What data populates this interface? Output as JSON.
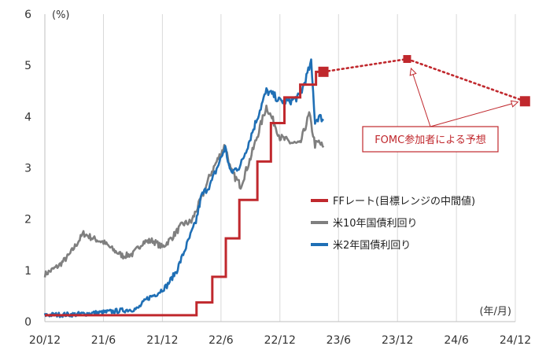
{
  "chart_data": {
    "type": "line",
    "y_unit": "(%)",
    "x_unit": "(年/月)",
    "ylim": [
      0,
      6
    ],
    "y_ticks": [
      "0",
      "1",
      "2",
      "3",
      "4",
      "5",
      "6"
    ],
    "x_ticks": [
      "20/12",
      "21/6",
      "21/12",
      "22/6",
      "22/12",
      "23/6",
      "23/12",
      "24/6",
      "24/12"
    ],
    "grid": "vertical",
    "legend_position": "right-middle",
    "colors": {
      "ff": "#c0282d",
      "us10y": "#7f7f7f",
      "us2y": "#1f6fb5",
      "grid": "#d9d9d9",
      "axis": "#bfbfbf"
    },
    "series": [
      {
        "name": "FFレート(目標レンジの中間値)",
        "style": "step",
        "points": [
          [
            "2020-12-01",
            0.125
          ],
          [
            "2022-03-17",
            0.375
          ],
          [
            "2022-05-05",
            0.875
          ],
          [
            "2022-06-16",
            1.625
          ],
          [
            "2022-07-28",
            2.375
          ],
          [
            "2022-09-22",
            3.125
          ],
          [
            "2022-11-03",
            3.875
          ],
          [
            "2022-12-15",
            4.375
          ],
          [
            "2023-02-02",
            4.625
          ],
          [
            "2023-03-23",
            4.875
          ],
          [
            "2023-04-15",
            4.875
          ]
        ]
      },
      {
        "name": "米10年国債利回り",
        "style": "line",
        "points": [
          [
            "2020-12-01",
            0.92
          ],
          [
            "2021-01-15",
            1.1
          ],
          [
            "2021-02-15",
            1.3
          ],
          [
            "2021-03-31",
            1.72
          ],
          [
            "2021-05-01",
            1.62
          ],
          [
            "2021-06-01",
            1.55
          ],
          [
            "2021-07-01",
            1.4
          ],
          [
            "2021-08-01",
            1.28
          ],
          [
            "2021-09-01",
            1.32
          ],
          [
            "2021-10-01",
            1.55
          ],
          [
            "2021-11-01",
            1.58
          ],
          [
            "2021-12-01",
            1.45
          ],
          [
            "2022-01-01",
            1.65
          ],
          [
            "2022-02-01",
            1.9
          ],
          [
            "2022-03-01",
            1.95
          ],
          [
            "2022-04-01",
            2.4
          ],
          [
            "2022-05-01",
            2.9
          ],
          [
            "2022-06-14",
            3.45
          ],
          [
            "2022-07-01",
            2.95
          ],
          [
            "2022-08-01",
            2.65
          ],
          [
            "2022-09-01",
            3.2
          ],
          [
            "2022-10-20",
            4.2
          ],
          [
            "2022-11-15",
            3.85
          ],
          [
            "2022-12-01",
            3.6
          ],
          [
            "2023-01-01",
            3.5
          ],
          [
            "2023-02-01",
            3.45
          ],
          [
            "2023-03-02",
            4.05
          ],
          [
            "2023-03-20",
            3.45
          ],
          [
            "2023-04-01",
            3.5
          ],
          [
            "2023-04-15",
            3.4
          ]
        ]
      },
      {
        "name": "米2年国債利回り",
        "style": "line",
        "points": [
          [
            "2020-12-01",
            0.13
          ],
          [
            "2021-03-01",
            0.14
          ],
          [
            "2021-06-01",
            0.18
          ],
          [
            "2021-08-01",
            0.22
          ],
          [
            "2021-09-15",
            0.25
          ],
          [
            "2021-10-15",
            0.45
          ],
          [
            "2021-11-15",
            0.55
          ],
          [
            "2021-12-15",
            0.7
          ],
          [
            "2022-01-15",
            1.0
          ],
          [
            "2022-02-15",
            1.5
          ],
          [
            "2022-03-15",
            1.95
          ],
          [
            "2022-04-01",
            2.45
          ],
          [
            "2022-05-01",
            2.7
          ],
          [
            "2022-06-14",
            3.4
          ],
          [
            "2022-07-01",
            2.9
          ],
          [
            "2022-08-01",
            3.05
          ],
          [
            "2022-09-01",
            3.6
          ],
          [
            "2022-10-20",
            4.5
          ],
          [
            "2022-11-15",
            4.4
          ],
          [
            "2022-12-01",
            4.3
          ],
          [
            "2023-01-01",
            4.3
          ],
          [
            "2023-02-01",
            4.4
          ],
          [
            "2023-03-08",
            5.05
          ],
          [
            "2023-03-20",
            3.9
          ],
          [
            "2023-04-01",
            4.0
          ],
          [
            "2023-04-15",
            3.95
          ]
        ]
      },
      {
        "name": "FOMC参加者による予想",
        "style": "dotted-markers",
        "points": [
          [
            "2023-04-15",
            4.875
          ],
          [
            "2023-12-31",
            5.125
          ],
          [
            "2024-12-31",
            4.3
          ]
        ]
      }
    ],
    "legend": [
      "FFレート(目標レンジの中間値)",
      "米10年国債利回り",
      "米2年国債利回り"
    ],
    "annotation": {
      "text": "FOMC参加者による予想"
    }
  }
}
